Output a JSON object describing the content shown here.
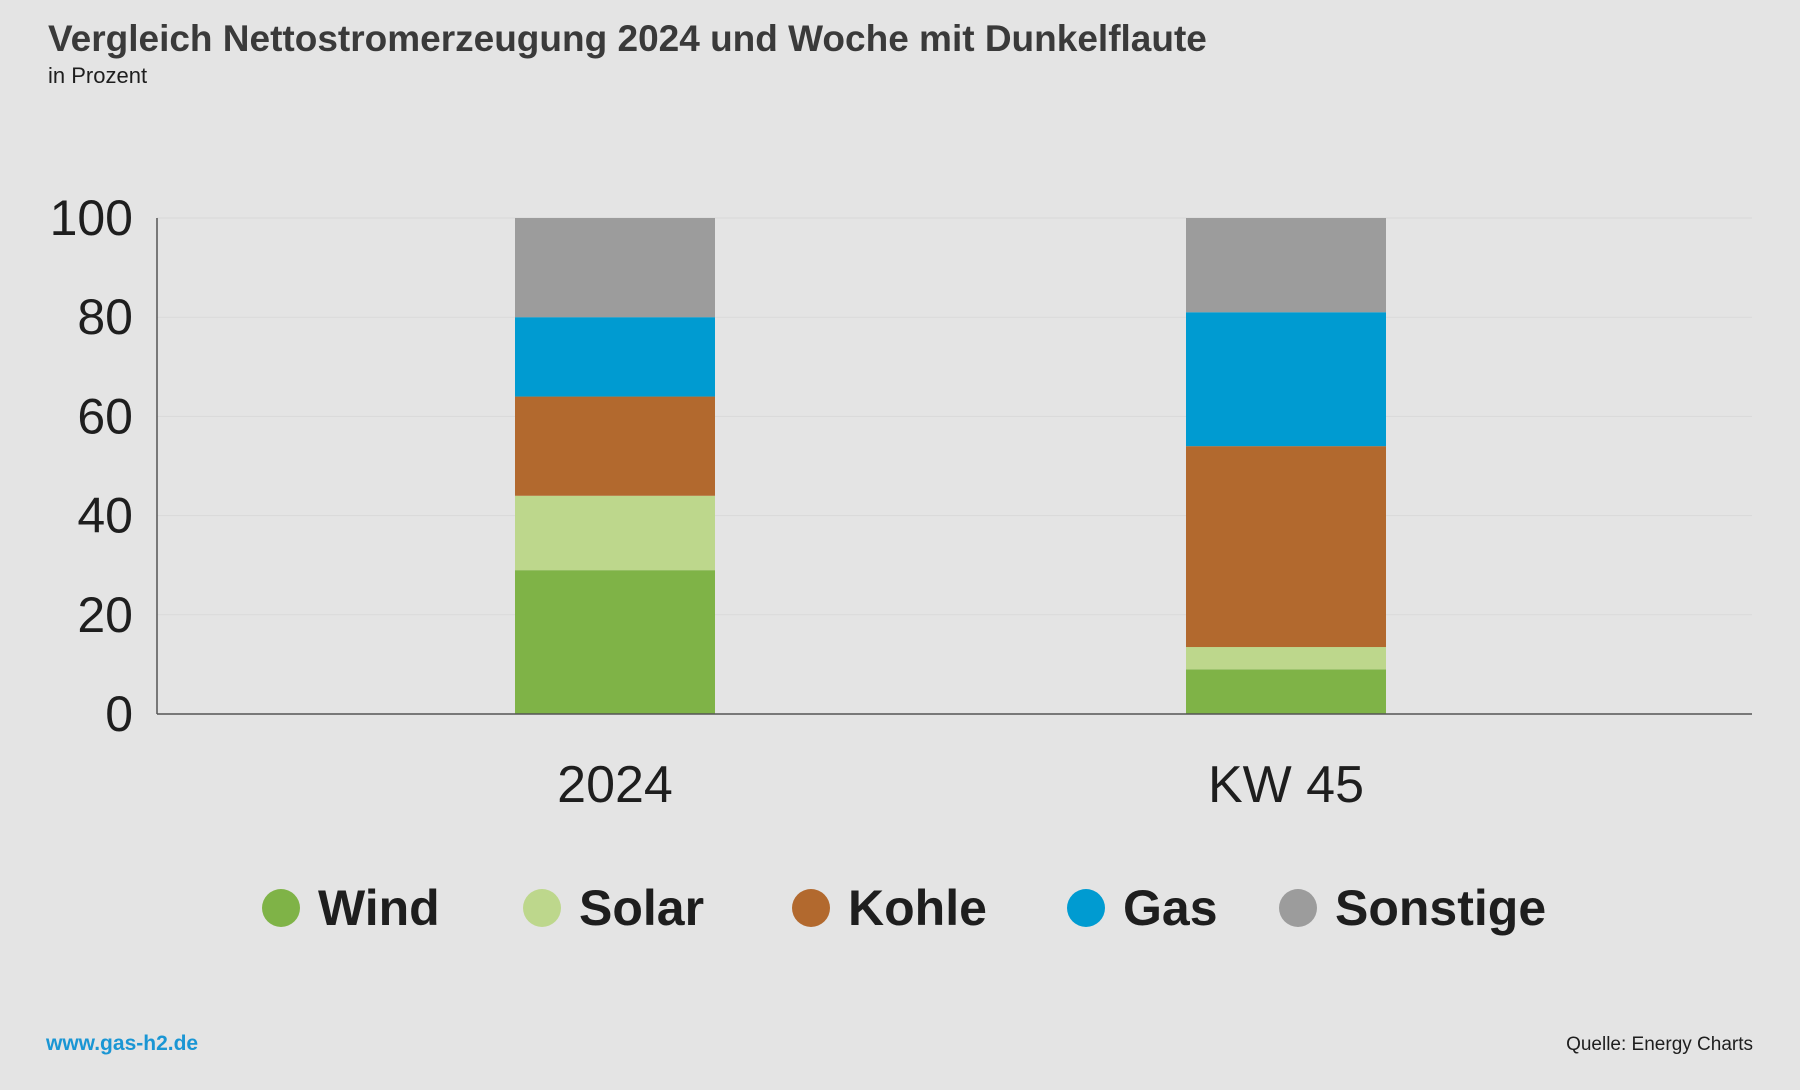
{
  "header": {
    "title": "Vergleich Nettostromerzeugung 2024 und Woche mit Dunkelflaute",
    "subtitle": "in Prozent"
  },
  "footer": {
    "url": "www.gas-h2.de",
    "source": "Quelle: Energy Charts"
  },
  "colors": {
    "Wind": "#7fb347",
    "Solar": "#bdd78c",
    "Kohle": "#b2692e",
    "Gas": "#009bd1",
    "Sonstige": "#9c9c9c",
    "axis": "#555555",
    "grid": "#d9d9d9",
    "text": "#1e1e1e"
  },
  "chart_data": {
    "type": "bar",
    "stacked": true,
    "title": "Vergleich Nettostromerzeugung 2024 und Woche mit Dunkelflaute",
    "subtitle": "in Prozent",
    "categories": [
      "2024",
      "KW 45"
    ],
    "series": [
      {
        "name": "Wind",
        "values": [
          29,
          9
        ]
      },
      {
        "name": "Solar",
        "values": [
          15,
          4.5
        ]
      },
      {
        "name": "Kohle",
        "values": [
          20,
          40.5
        ]
      },
      {
        "name": "Gas",
        "values": [
          16,
          27
        ]
      },
      {
        "name": "Sonstige",
        "values": [
          20,
          19
        ]
      }
    ],
    "ylim": [
      0,
      100
    ],
    "yticks": [
      0,
      20,
      40,
      60,
      80,
      100
    ],
    "grid": true,
    "legend": "bottom"
  }
}
